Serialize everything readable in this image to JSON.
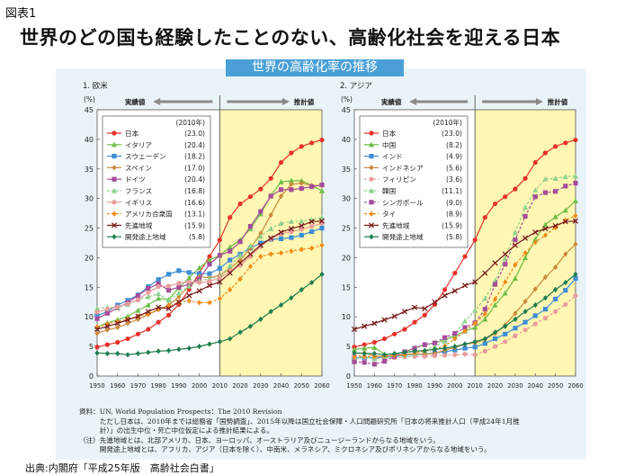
{
  "figure_label": "図表1",
  "title": "世界のどの国も経験したことのない、高齢化社会を迎える日本",
  "banner": "世界の高齢化率の推移",
  "notes": [
    "資料：UN, World Population Prospects：The 2010 Revision",
    "　　　ただし日本は、2010年までは総務省「国勢調査」、2015年以降は国立社会保障・人口問題研究所「日本の将来推計人口（平成24年1月推",
    "　　　計）」の出生中位・死亡中位仮定による推計結果による。",
    "（注）先進地域とは、北部アメリカ、日本、ヨーロッパ、オーストラリア及びニュージーランドからなる地域をいう。",
    "　　　開発途上地域とは、アフリカ、アジア（日本を除く）、中南米、メラネシア、ミクロネシア及びポリネシアからなる地域をいう。"
  ],
  "source": "出典:内閣府「平成25年版　高齢社会白書」",
  "colors": {
    "panel_bg": "#eaf3f8",
    "projection_bg": "#fff7b3",
    "banner": "#4aa0d6"
  },
  "chart_data": [
    {
      "type": "line",
      "panel_title": "1. 欧米",
      "unit_label": "(%)",
      "actual_label": "実績値",
      "projected_label": "推計値",
      "legend_header": "(2010年)",
      "legend_position": "top-left",
      "grid": false,
      "ylim": [
        0,
        45
      ],
      "yticks": [
        0,
        5,
        10,
        15,
        20,
        25,
        30,
        35,
        40,
        45
      ],
      "xticks": [
        1950,
        1960,
        1970,
        1980,
        1990,
        2000,
        2010,
        2020,
        2030,
        2040,
        2050,
        2060
      ],
      "projection_start": 2010,
      "x": [
        1950,
        1955,
        1960,
        1965,
        1970,
        1975,
        1980,
        1985,
        1990,
        1995,
        2000,
        2005,
        2010,
        2015,
        2020,
        2025,
        2030,
        2035,
        2040,
        2045,
        2050,
        2055,
        2060
      ],
      "series": [
        {
          "name": "日本",
          "value_2010": "(23.0)",
          "color": "#e8312c",
          "marker": "circle",
          "dashed": false,
          "values": [
            4.9,
            5.3,
            5.7,
            6.3,
            7.1,
            7.9,
            9.1,
            10.3,
            12.1,
            14.6,
            17.4,
            20.2,
            23.0,
            26.8,
            29.1,
            30.3,
            31.6,
            33.4,
            36.1,
            37.7,
            38.8,
            39.4,
            39.9
          ]
        },
        {
          "name": "イタリア",
          "value_2010": "(20.4)",
          "color": "#6cbe45",
          "marker": "triangle",
          "dashed": false,
          "values": [
            8.3,
            9.0,
            9.5,
            10.1,
            11.1,
            12.0,
            13.1,
            12.9,
            14.9,
            16.6,
            18.3,
            19.6,
            20.4,
            21.8,
            23.0,
            24.9,
            27.4,
            30.5,
            32.8,
            33.0,
            33.0,
            32.2,
            31.3
          ]
        },
        {
          "name": "スウェーデン",
          "value_2010": "(18.2)",
          "color": "#3f8ed6",
          "marker": "square",
          "dashed": false,
          "values": [
            10.2,
            10.9,
            12.0,
            12.8,
            13.7,
            15.1,
            16.3,
            17.2,
            17.8,
            17.5,
            17.3,
            17.3,
            18.2,
            19.6,
            20.6,
            21.6,
            22.5,
            23.1,
            23.2,
            23.4,
            23.8,
            24.4,
            25.0
          ]
        },
        {
          "name": "スペイン",
          "value_2010": "(17.0)",
          "color": "#c98a3c",
          "marker": "diamond",
          "dashed": false,
          "values": [
            7.2,
            7.8,
            8.2,
            8.9,
            9.6,
            10.4,
            11.2,
            12.0,
            13.4,
            15.3,
            16.8,
            16.6,
            17.0,
            18.2,
            19.6,
            21.6,
            24.1,
            27.2,
            30.4,
            32.4,
            32.6,
            32.2,
            32.2
          ]
        },
        {
          "name": "ドイツ",
          "value_2010": "(20.4)",
          "color": "#a64c9a",
          "marker": "square",
          "dashed": false,
          "values": [
            9.7,
            10.6,
            11.5,
            12.4,
            13.6,
            14.8,
            15.6,
            14.5,
            15.0,
            15.5,
            16.4,
            18.9,
            20.4,
            21.1,
            22.7,
            25.3,
            27.8,
            30.4,
            31.5,
            31.5,
            31.7,
            32.0,
            32.3
          ]
        },
        {
          "name": "フランス",
          "value_2010": "(16.8)",
          "color": "#8cd08a",
          "marker": "triangle",
          "dashed": true,
          "values": [
            11.4,
            11.6,
            11.6,
            12.1,
            12.9,
            13.4,
            13.9,
            12.8,
            14.0,
            15.2,
            16.1,
            16.5,
            16.8,
            18.6,
            20.4,
            22.0,
            23.6,
            24.9,
            25.8,
            26.1,
            26.2,
            26.4,
            26.8
          ]
        },
        {
          "name": "イギリス",
          "value_2010": "(16.6)",
          "color": "#e99c9c",
          "marker": "circle",
          "dashed": false,
          "values": [
            10.8,
            11.3,
            11.7,
            12.2,
            12.9,
            14.1,
            15.1,
            15.2,
            15.7,
            15.9,
            15.8,
            16.0,
            16.6,
            17.7,
            18.7,
            20.2,
            21.9,
            23.2,
            24.0,
            24.4,
            24.8,
            25.3,
            25.8
          ]
        },
        {
          "name": "アメリカ合衆国",
          "value_2010": "(13.1)",
          "color": "#f08b1a",
          "marker": "diamond",
          "dashed": true,
          "values": [
            8.3,
            8.8,
            9.2,
            9.6,
            10.1,
            10.5,
            11.3,
            11.8,
            12.5,
            12.7,
            12.4,
            12.4,
            13.1,
            14.6,
            16.4,
            18.5,
            20.2,
            20.6,
            20.8,
            21.1,
            21.4,
            21.6,
            22.1
          ]
        },
        {
          "name": "先進地域",
          "value_2010": "(15.9)",
          "color": "#7a1c1c",
          "marker": "x",
          "dashed": false,
          "values": [
            7.9,
            8.4,
            8.9,
            9.5,
            10.1,
            10.9,
            11.6,
            11.4,
            12.5,
            13.6,
            14.4,
            15.3,
            15.9,
            17.4,
            19.1,
            20.6,
            22.1,
            23.3,
            24.3,
            24.9,
            25.4,
            26.1,
            26.2
          ]
        },
        {
          "name": "開発途上地域",
          "value_2010": "(5.8)",
          "color": "#1e7c4e",
          "marker": "diamond",
          "dashed": false,
          "values": [
            3.9,
            3.8,
            3.8,
            3.6,
            3.8,
            4.0,
            4.2,
            4.3,
            4.5,
            4.7,
            5.0,
            5.4,
            5.8,
            6.3,
            7.4,
            8.4,
            9.6,
            10.9,
            12.0,
            13.2,
            14.6,
            15.8,
            17.2
          ]
        }
      ]
    },
    {
      "type": "line",
      "panel_title": "2. アジア",
      "unit_label": "(%)",
      "actual_label": "実績値",
      "projected_label": "推計値",
      "legend_header": "(2010年)",
      "legend_position": "top-left",
      "grid": false,
      "ylim": [
        0,
        45
      ],
      "yticks": [
        0,
        5,
        10,
        15,
        20,
        25,
        30,
        35,
        40,
        45
      ],
      "xticks": [
        1950,
        1960,
        1970,
        1980,
        1990,
        2000,
        2010,
        2020,
        2030,
        2040,
        2050,
        2060
      ],
      "projection_start": 2010,
      "x": [
        1950,
        1955,
        1960,
        1965,
        1970,
        1975,
        1980,
        1985,
        1990,
        1995,
        2000,
        2005,
        2010,
        2015,
        2020,
        2025,
        2030,
        2035,
        2040,
        2045,
        2050,
        2055,
        2060
      ],
      "series": [
        {
          "name": "日本",
          "value_2010": "(23.0)",
          "color": "#e8312c",
          "marker": "circle",
          "dashed": false,
          "values": [
            4.9,
            5.3,
            5.7,
            6.3,
            7.1,
            7.9,
            9.1,
            10.3,
            12.1,
            14.6,
            17.4,
            20.2,
            23.0,
            26.8,
            29.1,
            30.3,
            31.6,
            33.4,
            36.1,
            37.7,
            38.8,
            39.4,
            39.9
          ]
        },
        {
          "name": "中国",
          "value_2010": "(8.2)",
          "color": "#6cbe45",
          "marker": "triangle",
          "dashed": false,
          "values": [
            4.5,
            4.7,
            4.8,
            3.7,
            3.7,
            4.1,
            4.7,
            5.3,
            5.6,
            6.1,
            6.8,
            7.6,
            8.2,
            9.6,
            12.0,
            14.0,
            16.5,
            20.0,
            23.1,
            25.6,
            26.9,
            28.0,
            29.6
          ]
        },
        {
          "name": "インド",
          "value_2010": "(4.9)",
          "color": "#3f8ed6",
          "marker": "square",
          "dashed": false,
          "values": [
            3.1,
            3.1,
            3.1,
            3.2,
            3.3,
            3.5,
            3.6,
            3.7,
            3.9,
            4.1,
            4.4,
            4.7,
            4.9,
            5.5,
            6.3,
            7.1,
            8.1,
            9.1,
            10.2,
            11.3,
            13.0,
            14.5,
            16.5
          ]
        },
        {
          "name": "インドネシア",
          "value_2010": "(5.6)",
          "color": "#c98a3c",
          "marker": "diamond",
          "dashed": false,
          "values": [
            3.9,
            3.9,
            3.4,
            3.3,
            3.5,
            3.6,
            3.7,
            3.7,
            3.8,
            4.4,
            4.8,
            5.4,
            5.6,
            6.2,
            7.2,
            8.6,
            10.6,
            12.6,
            14.7,
            16.7,
            18.4,
            20.6,
            22.3
          ]
        },
        {
          "name": "フィリピン",
          "value_2010": "(3.6)",
          "color": "#e99c9c",
          "marker": "circle",
          "dashed": true,
          "values": [
            3.6,
            3.2,
            3.0,
            3.0,
            3.1,
            3.2,
            3.3,
            3.3,
            3.4,
            3.5,
            3.6,
            3.7,
            3.6,
            4.2,
            5.0,
            5.8,
            6.8,
            7.8,
            8.8,
            9.8,
            10.9,
            12.1,
            13.6
          ]
        },
        {
          "name": "韓国",
          "value_2010": "(11.1)",
          "color": "#8cd08a",
          "marker": "triangle",
          "dashed": true,
          "values": [
            3.0,
            3.3,
            2.9,
            3.1,
            3.3,
            3.5,
            3.8,
            4.3,
            5.0,
            5.9,
            7.2,
            9.3,
            11.1,
            13.1,
            16.1,
            19.9,
            24.3,
            28.5,
            31.4,
            33.3,
            33.4,
            33.7,
            33.8
          ]
        },
        {
          "name": "シンガポール",
          "value_2010": "(9.0)",
          "color": "#a64c9a",
          "marker": "square",
          "dashed": true,
          "values": [
            2.4,
            2.3,
            2.0,
            2.5,
            3.3,
            4.1,
            4.7,
            5.3,
            5.6,
            6.5,
            7.2,
            8.2,
            9.0,
            11.3,
            15.5,
            18.9,
            23.0,
            27.0,
            30.3,
            31.0,
            31.2,
            32.1,
            32.6
          ]
        },
        {
          "name": "タイ",
          "value_2010": "(8.9)",
          "color": "#f08b1a",
          "marker": "diamond",
          "dashed": true,
          "values": [
            3.2,
            3.3,
            3.3,
            3.4,
            3.5,
            3.6,
            3.9,
            4.2,
            4.5,
            5.1,
            6.3,
            7.6,
            8.9,
            10.5,
            13.0,
            15.9,
            18.8,
            20.8,
            22.6,
            23.8,
            25.1,
            26.3,
            27.1
          ]
        },
        {
          "name": "先進地域",
          "value_2010": "(15.9)",
          "color": "#7a1c1c",
          "marker": "x",
          "dashed": false,
          "values": [
            7.9,
            8.4,
            8.9,
            9.5,
            10.1,
            10.9,
            11.6,
            11.4,
            12.5,
            13.6,
            14.4,
            15.3,
            15.9,
            17.4,
            19.1,
            20.6,
            22.1,
            23.3,
            24.3,
            24.9,
            25.4,
            26.1,
            26.2
          ]
        },
        {
          "name": "開発途上地域",
          "value_2010": "(5.8)",
          "color": "#1e7c4e",
          "marker": "diamond",
          "dashed": false,
          "values": [
            3.9,
            3.8,
            3.8,
            3.6,
            3.8,
            4.0,
            4.2,
            4.3,
            4.5,
            4.7,
            5.0,
            5.4,
            5.8,
            6.3,
            7.4,
            8.4,
            9.6,
            10.9,
            12.0,
            13.2,
            14.6,
            15.8,
            17.2
          ]
        }
      ]
    }
  ]
}
